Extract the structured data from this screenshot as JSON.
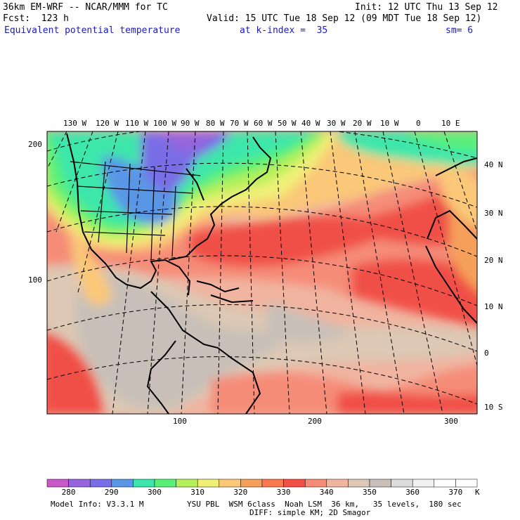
{
  "header": {
    "model": "36km EM-WRF -- NCAR/MMM for TC",
    "init": "Init: 12 UTC Thu 13 Sep 12",
    "fcst": "Fcst:  123 h",
    "valid": "Valid: 15 UTC Tue 18 Sep 12 (09 MDT Tue 18 Sep 12)",
    "field": "Equivalent potential temperature",
    "level": "at k-index =  35",
    "smooth": "sm= 6"
  },
  "axes": {
    "lon_labels": [
      "130 W",
      "120 W",
      "110 W",
      "100 W",
      "90 W",
      "80 W",
      "70 W",
      "60 W",
      "50 W",
      "40 W",
      "30 W",
      "20 W",
      "10 W",
      "0",
      "10 E"
    ],
    "lat_labels": [
      "40 N",
      "30 N",
      "20 N",
      "10 N",
      "0",
      "10 S"
    ],
    "grid_y_labels": [
      "200",
      "100"
    ],
    "grid_x_labels": [
      "100",
      "200",
      "300"
    ]
  },
  "colorbar": {
    "labels": [
      "280",
      "290",
      "300",
      "310",
      "320",
      "330",
      "340",
      "350",
      "360",
      "370"
    ],
    "unit": "K",
    "colors": [
      "#c85ac8",
      "#9664dc",
      "#7a6ee6",
      "#5a96e6",
      "#3ce6aa",
      "#5af078",
      "#b4f05a",
      "#f0f078",
      "#fac878",
      "#f5a05a",
      "#fa7850",
      "#f05046",
      "#f58c78",
      "#f0b4a0",
      "#dcc8b4",
      "#c8c0b8",
      "#dcdcdc",
      "#f0f0f0",
      "#ffffff",
      "#ffffff"
    ]
  },
  "footer": {
    "model_info": "Model Info: V3.3.1 M",
    "physics": "YSU PBL  WSM 6class  Noah LSM  36 km,   35 levels,  180 sec",
    "diff": "DIFF: simple KM; 2D Smagor"
  }
}
